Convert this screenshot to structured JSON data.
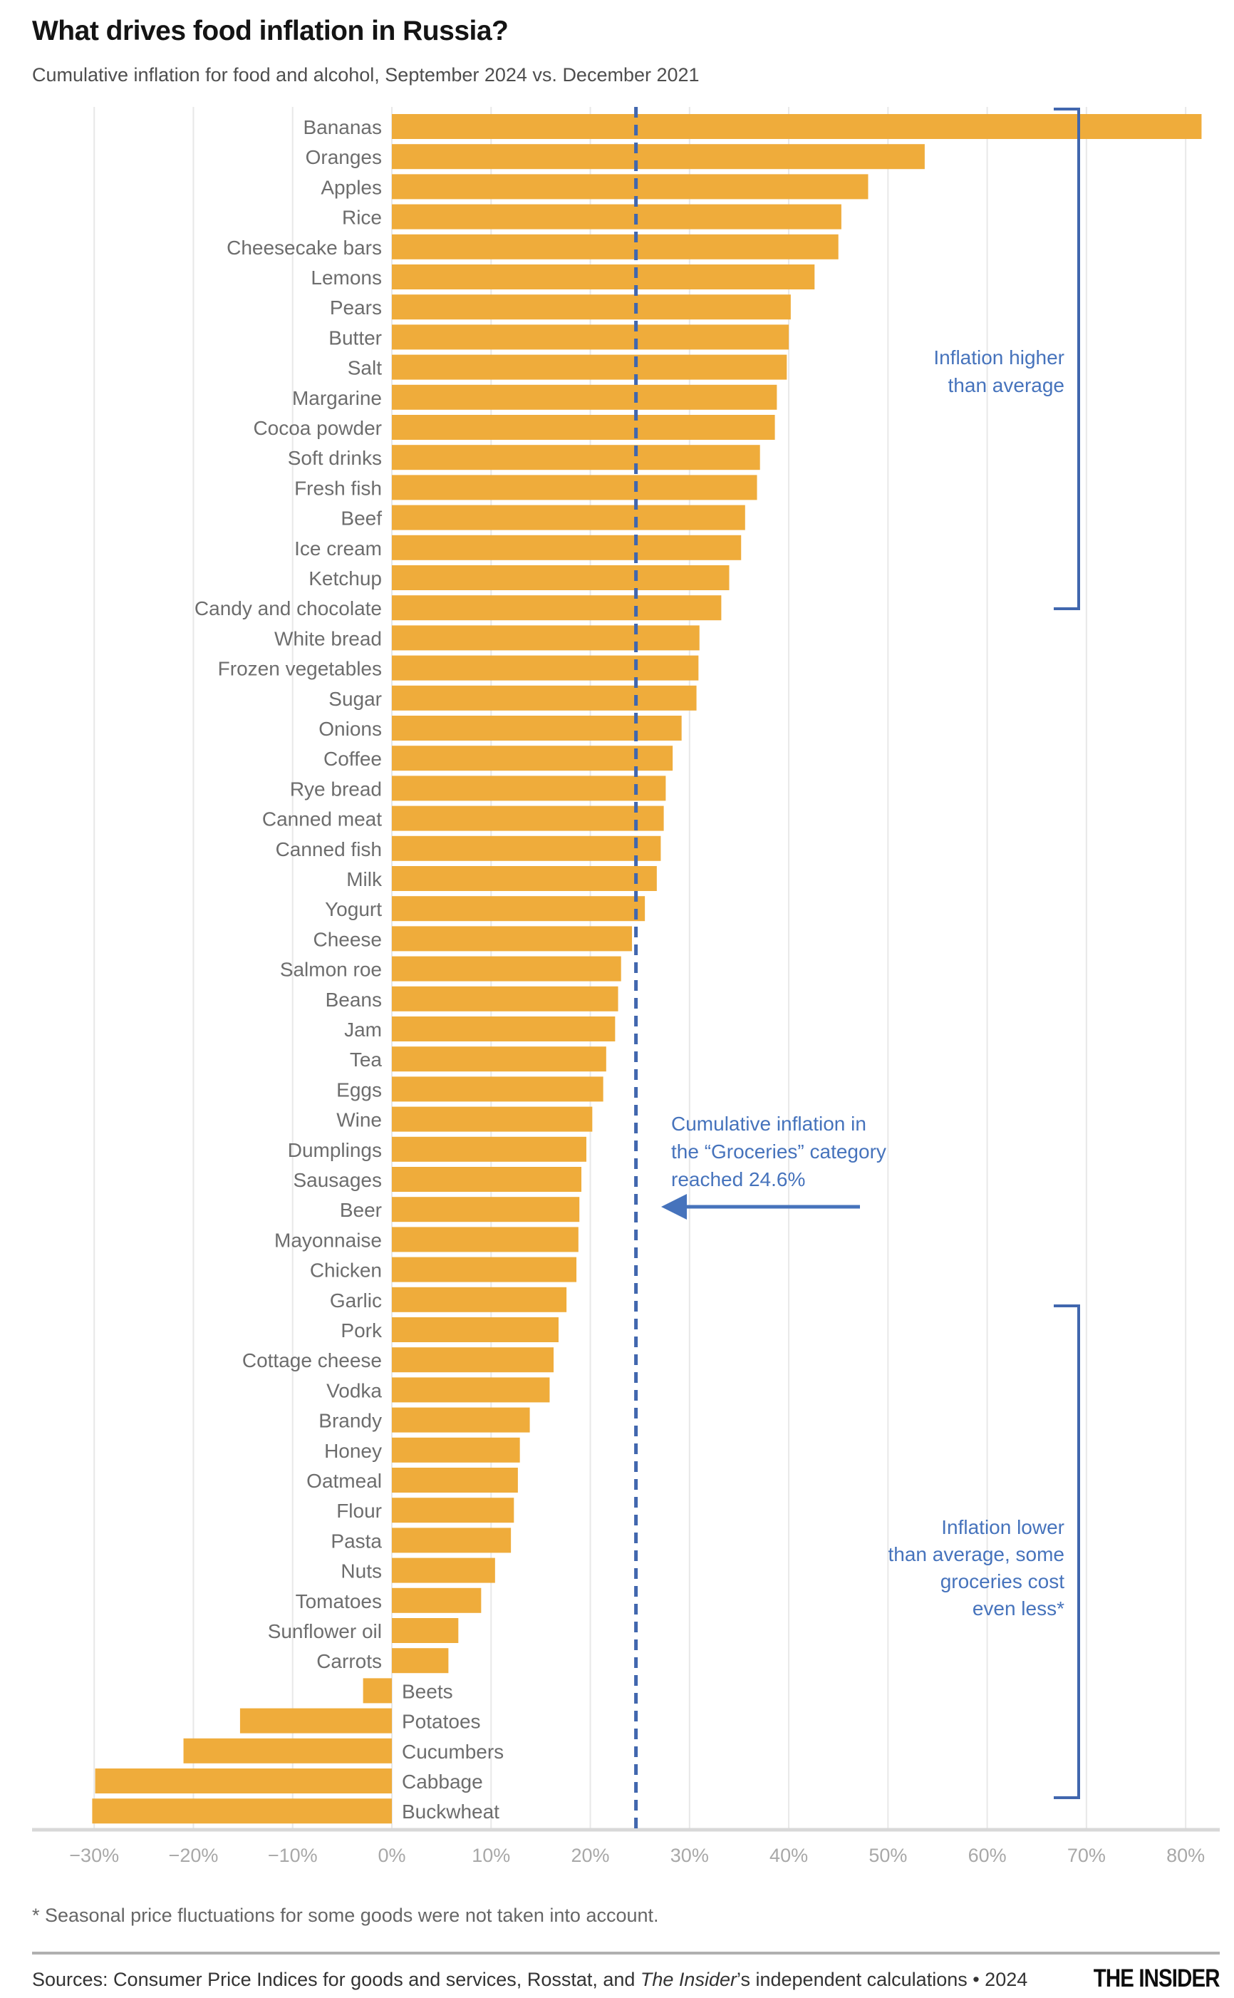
{
  "header": {
    "title": "What drives food inflation in Russia?",
    "subtitle": "Cumulative inflation for food and alcohol, September 2024 vs. December 2021"
  },
  "chart_data": {
    "type": "bar",
    "orientation": "horizontal",
    "title": "What drives food inflation in Russia?",
    "subtitle": "Cumulative inflation for food and alcohol, September 2024 vs. December 2021",
    "unit": "%",
    "xlim": [
      -30,
      80
    ],
    "grid": true,
    "bar_color": "#EFAC3B",
    "accent_blue": "#4167AE",
    "tick_values": [
      -30,
      -20,
      -10,
      0,
      10,
      20,
      30,
      40,
      50,
      60,
      70,
      80
    ],
    "tick_labels": [
      "−30%",
      "−20%",
      "−10%",
      "0%",
      "10%",
      "20%",
      "30%",
      "40%",
      "50%",
      "60%",
      "70%",
      "80%"
    ],
    "reference_line": {
      "value": 24.6,
      "style": "dashed",
      "color": "#4167AE"
    },
    "categories": [
      "Bananas",
      "Oranges",
      "Apples",
      "Rice",
      "Cheesecake bars",
      "Lemons",
      "Pears",
      "Butter",
      "Salt",
      "Margarine",
      "Cocoa powder",
      "Soft drinks",
      "Fresh fish",
      "Beef",
      "Ice cream",
      "Ketchup",
      "Candy and chocolate",
      "White bread",
      "Frozen vegetables",
      "Sugar",
      "Onions",
      "Coffee",
      "Rye bread",
      "Canned meat",
      "Canned fish",
      "Milk",
      "Yogurt",
      "Cheese",
      "Salmon roe",
      "Beans",
      "Jam",
      "Tea",
      "Eggs",
      "Wine",
      "Dumplings",
      "Sausages",
      "Beer",
      "Mayonnaise",
      "Chicken",
      "Garlic",
      "Pork",
      "Cottage cheese",
      "Vodka",
      "Brandy",
      "Honey",
      "Oatmeal",
      "Flour",
      "Pasta",
      "Nuts",
      "Tomatoes",
      "Sunflower oil",
      "Carrots",
      "Beets",
      "Potatoes",
      "Cucumbers",
      "Cabbage",
      "Buckwheat"
    ],
    "values": [
      81.6,
      53.7,
      48.0,
      45.3,
      45.0,
      42.6,
      40.2,
      40.0,
      39.8,
      38.8,
      38.6,
      37.1,
      36.8,
      35.6,
      35.2,
      34.0,
      33.2,
      31.0,
      30.9,
      30.7,
      29.2,
      28.3,
      27.6,
      27.4,
      27.1,
      26.7,
      25.5,
      24.2,
      23.1,
      22.8,
      22.5,
      21.6,
      21.3,
      20.2,
      19.6,
      19.1,
      18.9,
      18.8,
      18.6,
      17.6,
      16.8,
      16.3,
      15.9,
      13.9,
      12.9,
      12.7,
      12.3,
      12.0,
      10.4,
      9.0,
      6.7,
      5.7,
      -2.9,
      -15.3,
      -21.0,
      -29.9,
      -30.2
    ]
  },
  "annotations": {
    "higher": {
      "lines": [
        "Inflation higher",
        "than average"
      ]
    },
    "groceries": {
      "lines": [
        "Cumulative inflation in",
        "the “Groceries” category",
        "reached 24.6%"
      ]
    },
    "lower": {
      "lines": [
        "Inflation lower",
        "than average, some",
        "groceries cost",
        "even less*"
      ]
    }
  },
  "footer": {
    "footnote": "* Seasonal price fluctuations for some goods were not taken into account.",
    "sources_prefix": "Sources: Consumer Price Indices for goods and services, Rosstat, and ",
    "sources_italic": "The Insider",
    "sources_suffix": "’s independent calculations • 2024",
    "logo": "THE INSIDER"
  }
}
